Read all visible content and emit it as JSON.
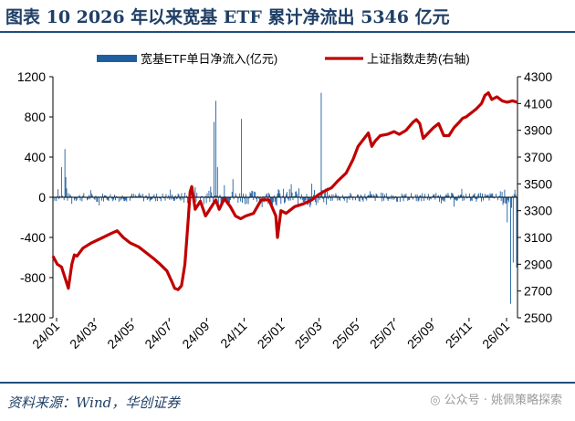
{
  "title": "图表 10   2026 年以来宽基 ETF 累计净流出 5346 亿元",
  "source": "资料来源：Wind，华创证券",
  "watermark": "公众号 · 姚佩策略探索",
  "colors": {
    "bar": "#1f5fa0",
    "line": "#c00000",
    "axis": "#000000",
    "title": "#1f3f66"
  },
  "chart_data": {
    "type": "bar+line",
    "legend": {
      "placement": "top"
    },
    "grid": false,
    "x_labels": [
      "24/01",
      "24/03",
      "24/05",
      "24/07",
      "24/09",
      "24/11",
      "25/01",
      "25/03",
      "25/05",
      "25/07",
      "25/09",
      "25/11",
      "26/01"
    ],
    "y_left": {
      "ticks": [
        -1200,
        -800,
        -400,
        0,
        400,
        800,
        1200
      ],
      "lim": [
        -1200,
        1200
      ]
    },
    "y_right": {
      "ticks": [
        2500,
        2700,
        2900,
        3100,
        3300,
        3500,
        3700,
        3900,
        4100,
        4300
      ],
      "lim": [
        2500,
        4300
      ]
    },
    "series": [
      {
        "name": "宽基ETF单日净流入(亿元)",
        "type": "bar",
        "axis": "left",
        "anchors": [
          [
            0,
            20
          ],
          [
            6,
            80
          ],
          [
            10,
            300
          ],
          [
            14,
            480
          ],
          [
            15,
            200
          ],
          [
            20,
            30
          ],
          [
            40,
            -30
          ],
          [
            60,
            20
          ],
          [
            80,
            -20
          ],
          [
            100,
            30
          ],
          [
            120,
            -40
          ],
          [
            140,
            -20
          ],
          [
            160,
            60
          ],
          [
            166,
            100
          ],
          [
            180,
            40
          ],
          [
            188,
            750
          ],
          [
            190,
            960
          ],
          [
            192,
            300
          ],
          [
            200,
            120
          ],
          [
            210,
            180
          ],
          [
            220,
            780
          ],
          [
            230,
            50
          ],
          [
            250,
            40
          ],
          [
            270,
            -60
          ],
          [
            290,
            30
          ],
          [
            300,
            -100
          ],
          [
            313,
            1040
          ],
          [
            316,
            -50
          ],
          [
            330,
            40
          ],
          [
            350,
            -30
          ],
          [
            370,
            60
          ],
          [
            390,
            -20
          ],
          [
            410,
            30
          ],
          [
            430,
            -40
          ],
          [
            450,
            20
          ],
          [
            470,
            -30
          ],
          [
            490,
            20
          ],
          [
            510,
            40
          ],
          [
            522,
            60
          ],
          [
            530,
            -250
          ],
          [
            534,
            -1060
          ],
          [
            537,
            -650
          ],
          [
            541,
            -700
          ]
        ]
      },
      {
        "name": "上证指数走势(右轴)",
        "type": "line",
        "axis": "right",
        "points": [
          [
            0,
            2960
          ],
          [
            5,
            2900
          ],
          [
            10,
            2880
          ],
          [
            15,
            2780
          ],
          [
            18,
            2720
          ],
          [
            22,
            2900
          ],
          [
            25,
            2970
          ],
          [
            28,
            2960
          ],
          [
            35,
            3020
          ],
          [
            45,
            3060
          ],
          [
            55,
            3090
          ],
          [
            68,
            3130
          ],
          [
            75,
            3150
          ],
          [
            82,
            3100
          ],
          [
            90,
            3060
          ],
          [
            100,
            3030
          ],
          [
            110,
            2980
          ],
          [
            118,
            2940
          ],
          [
            125,
            2900
          ],
          [
            133,
            2850
          ],
          [
            138,
            2780
          ],
          [
            142,
            2720
          ],
          [
            146,
            2710
          ],
          [
            150,
            2740
          ],
          [
            154,
            2900
          ],
          [
            158,
            3250
          ],
          [
            160,
            3440
          ],
          [
            162,
            3480
          ],
          [
            166,
            3310
          ],
          [
            172,
            3370
          ],
          [
            178,
            3260
          ],
          [
            186,
            3340
          ],
          [
            190,
            3380
          ],
          [
            194,
            3310
          ],
          [
            200,
            3390
          ],
          [
            207,
            3330
          ],
          [
            213,
            3260
          ],
          [
            219,
            3240
          ],
          [
            225,
            3260
          ],
          [
            234,
            3280
          ],
          [
            243,
            3380
          ],
          [
            252,
            3380
          ],
          [
            260,
            3260
          ],
          [
            262,
            3100
          ],
          [
            266,
            3300
          ],
          [
            272,
            3280
          ],
          [
            282,
            3330
          ],
          [
            292,
            3350
          ],
          [
            302,
            3380
          ],
          [
            310,
            3420
          ],
          [
            318,
            3450
          ],
          [
            325,
            3470
          ],
          [
            332,
            3520
          ],
          [
            342,
            3580
          ],
          [
            350,
            3680
          ],
          [
            356,
            3780
          ],
          [
            362,
            3830
          ],
          [
            368,
            3880
          ],
          [
            372,
            3780
          ],
          [
            376,
            3820
          ],
          [
            382,
            3860
          ],
          [
            390,
            3870
          ],
          [
            398,
            3890
          ],
          [
            404,
            3870
          ],
          [
            412,
            3900
          ],
          [
            420,
            3960
          ],
          [
            424,
            3980
          ],
          [
            428,
            3950
          ],
          [
            432,
            3840
          ],
          [
            438,
            3880
          ],
          [
            444,
            3920
          ],
          [
            450,
            3950
          ],
          [
            456,
            3860
          ],
          [
            462,
            3860
          ],
          [
            468,
            3920
          ],
          [
            474,
            3960
          ],
          [
            478,
            3990
          ],
          [
            482,
            4000
          ],
          [
            488,
            4030
          ],
          [
            494,
            4060
          ],
          [
            500,
            4100
          ],
          [
            504,
            4160
          ],
          [
            508,
            4180
          ],
          [
            512,
            4130
          ],
          [
            518,
            4150
          ],
          [
            524,
            4120
          ],
          [
            530,
            4110
          ],
          [
            536,
            4120
          ],
          [
            542,
            4110
          ]
        ]
      }
    ]
  }
}
